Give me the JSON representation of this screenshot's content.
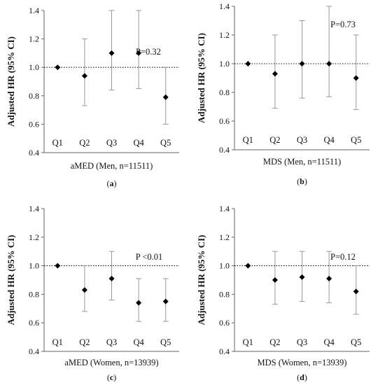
{
  "chart_data": [
    {
      "type": "scatter",
      "panel": "(a)",
      "panel_letter": "a",
      "ylabel": "Adjusted HR (95% CI)",
      "xlabel": "aMED (Men, n=11511)",
      "categories": [
        "Q1",
        "Q2",
        "Q3",
        "Q4",
        "Q5"
      ],
      "values": [
        1.0,
        0.94,
        1.1,
        1.1,
        0.79
      ],
      "ci_lower": [
        1.0,
        0.73,
        0.84,
        0.85,
        0.6
      ],
      "ci_upper": [
        1.0,
        1.2,
        1.4,
        1.4,
        1.0
      ],
      "reference_line": 1.0,
      "annotation": "P=0.32",
      "ylim": [
        0.4,
        1.4
      ],
      "yticks": [
        "0.4",
        "0.6",
        "0.8",
        "1.0",
        "1.2",
        "1.4"
      ],
      "grid": false
    },
    {
      "type": "scatter",
      "panel": "(b)",
      "panel_letter": "b",
      "ylabel": "Adjusted HR (95% CI)",
      "xlabel": "MDS (Men, n=11511)",
      "categories": [
        "Q1",
        "Q2",
        "Q3",
        "Q4",
        "Q5"
      ],
      "values": [
        1.0,
        0.93,
        1.0,
        1.0,
        0.9
      ],
      "ci_lower": [
        1.0,
        0.69,
        0.76,
        0.77,
        0.68
      ],
      "ci_upper": [
        1.0,
        1.2,
        1.3,
        1.4,
        1.2
      ],
      "reference_line": 1.0,
      "annotation": "P=0.73",
      "ylim": [
        0.4,
        1.4
      ],
      "yticks": [
        "0.4",
        "0.6",
        "0.8",
        "1.0",
        "1.2",
        "1.4"
      ],
      "grid": false
    },
    {
      "type": "scatter",
      "panel": "(c)",
      "panel_letter": "c",
      "ylabel": "Adjusted HR (95% CI)",
      "xlabel": "aMED (Women, n=13939)",
      "categories": [
        "Q1",
        "Q2",
        "Q3",
        "Q4",
        "Q5"
      ],
      "values": [
        1.0,
        0.83,
        0.91,
        0.74,
        0.75
      ],
      "ci_lower": [
        1.0,
        0.68,
        0.76,
        0.61,
        0.61
      ],
      "ci_upper": [
        1.0,
        1.0,
        1.1,
        0.91,
        0.91
      ],
      "reference_line": 1.0,
      "annotation": "P <0.01",
      "ylim": [
        0.4,
        1.4
      ],
      "yticks": [
        "0.4",
        "0.6",
        "0.8",
        "1.0",
        "1.2",
        "1.4"
      ],
      "grid": false
    },
    {
      "type": "scatter",
      "panel": "(d)",
      "panel_letter": "d",
      "ylabel": "Adjusted HR (95% CI)",
      "xlabel": "MDS (Women, n=13939)",
      "categories": [
        "Q1",
        "Q2",
        "Q3",
        "Q4",
        "Q5"
      ],
      "values": [
        1.0,
        0.9,
        0.92,
        0.91,
        0.82
      ],
      "ci_lower": [
        1.0,
        0.73,
        0.75,
        0.74,
        0.66
      ],
      "ci_upper": [
        1.0,
        1.1,
        1.1,
        1.1,
        1.0
      ],
      "reference_line": 1.0,
      "annotation": "P=0.12",
      "ylim": [
        0.4,
        1.4
      ],
      "yticks": [
        "0.4",
        "0.6",
        "0.8",
        "1.0",
        "1.2",
        "1.4"
      ],
      "grid": false
    }
  ]
}
